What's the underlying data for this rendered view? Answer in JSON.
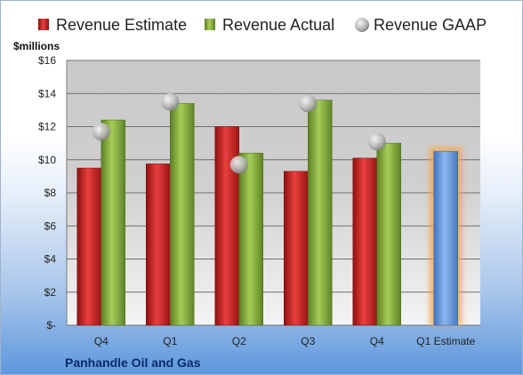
{
  "chart_data": {
    "type": "bar",
    "ylabel": "$millions",
    "footer": "Panhandle Oil and Gas",
    "categories": [
      "Q4",
      "Q1",
      "Q2",
      "Q3",
      "Q4",
      "Q1 Estimate"
    ],
    "ylim": [
      0,
      16
    ],
    "ytick_labels": [
      "$-",
      "$2",
      "$4",
      "$6",
      "$8",
      "$10",
      "$12",
      "$14",
      "$16"
    ],
    "ytick_values": [
      0,
      2,
      4,
      6,
      8,
      10,
      12,
      14,
      16
    ],
    "grid": true,
    "legend_position": "top",
    "series": [
      {
        "name": "Revenue Estimate",
        "kind": "bar",
        "color": "#d42a2a",
        "values": [
          9.5,
          9.75,
          12.0,
          9.3,
          10.1,
          null
        ]
      },
      {
        "name": "Revenue Actual",
        "kind": "bar",
        "color": "#8cb445",
        "values": [
          12.4,
          13.4,
          10.4,
          13.6,
          11.0,
          null
        ]
      },
      {
        "name": "Revenue GAAP",
        "kind": "marker",
        "color": "#b8b8b8",
        "values": [
          11.7,
          13.5,
          9.7,
          13.4,
          11.1,
          null
        ]
      },
      {
        "name": "Q1 Estimate",
        "kind": "bar",
        "color": "#6a9ee0",
        "highlight": "#f2a448",
        "values": [
          null,
          null,
          null,
          null,
          null,
          10.5
        ]
      }
    ]
  }
}
